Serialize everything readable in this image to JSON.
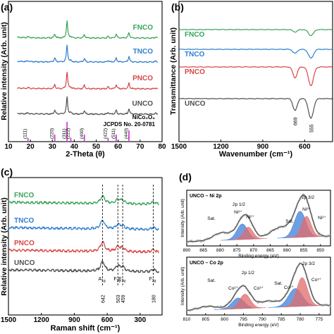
{
  "panel_labels": {
    "a": "(a)",
    "b": "(b)",
    "c": "(c)",
    "d": "(d)"
  },
  "colors": {
    "FNCO": "#3aa35a",
    "TNCO": "#2f7fd0",
    "PNCO": "#d94545",
    "UNCO": "#505050",
    "ref": "#cc44cc",
    "xps_blue": "#3f7fd6",
    "xps_red": "#e06b6b",
    "xps_fit": "#7a7a7a"
  },
  "chart_data": [
    {
      "panel": "a",
      "type": "line",
      "xlabel": "2-Theta (θ)",
      "ylabel": "Relative intensity (Arb. unit)",
      "xlim": [
        10,
        80
      ],
      "xticks": [
        "10",
        "20",
        "30",
        "40",
        "50",
        "60",
        "70",
        "80"
      ],
      "series": [
        {
          "name": "FNCO",
          "offset": 3,
          "peaks": [
            [
              18.9,
              0.05
            ],
            [
              31.1,
              0.18
            ],
            [
              36.7,
              0.75
            ],
            [
              38.4,
              0.06
            ],
            [
              44.6,
              0.16
            ],
            [
              55.4,
              0.08
            ],
            [
              59.1,
              0.18
            ],
            [
              64.9,
              0.25
            ],
            [
              77.1,
              0.04
            ]
          ]
        },
        {
          "name": "TNCO",
          "offset": 2,
          "peaks": [
            [
              18.9,
              0.05
            ],
            [
              31.1,
              0.18
            ],
            [
              36.7,
              0.75
            ],
            [
              38.4,
              0.06
            ],
            [
              44.6,
              0.16
            ],
            [
              55.4,
              0.08
            ],
            [
              59.1,
              0.18
            ],
            [
              64.9,
              0.25
            ],
            [
              77.1,
              0.04
            ]
          ]
        },
        {
          "name": "PNCO",
          "offset": 1,
          "peaks": [
            [
              18.9,
              0.05
            ],
            [
              31.1,
              0.18
            ],
            [
              36.7,
              0.75
            ],
            [
              38.4,
              0.06
            ],
            [
              44.6,
              0.16
            ],
            [
              55.4,
              0.08
            ],
            [
              59.1,
              0.18
            ],
            [
              64.9,
              0.25
            ],
            [
              77.1,
              0.04
            ]
          ]
        },
        {
          "name": "UNCO",
          "offset": 0,
          "peaks": [
            [
              18.9,
              0.05
            ],
            [
              31.1,
              0.18
            ],
            [
              36.7,
              0.75
            ],
            [
              38.4,
              0.06
            ],
            [
              44.6,
              0.16
            ],
            [
              55.4,
              0.08
            ],
            [
              59.1,
              0.18
            ],
            [
              64.9,
              0.25
            ],
            [
              77.1,
              0.04
            ]
          ]
        }
      ],
      "reference": {
        "name": "NiCo₂O₄",
        "card": "JCPDS No. 20-0781",
        "lines": [
          [
            18.9,
            "(111)"
          ],
          [
            31.1,
            "(220)"
          ],
          [
            36.7,
            "(311)"
          ],
          [
            38.4,
            "(222)"
          ],
          [
            44.6,
            "(400)"
          ],
          [
            55.4,
            "(422)"
          ],
          [
            59.1,
            "(511)"
          ],
          [
            64.9,
            "(440)"
          ]
        ]
      }
    },
    {
      "panel": "b",
      "type": "line",
      "xlabel": "Wavenumber (cm⁻¹)",
      "ylabel": "Transmittance (Arb. unit)",
      "xlim": [
        1500,
        400
      ],
      "xticks": [
        "1500",
        "1200",
        "900",
        "600"
      ],
      "series": [
        {
          "name": "FNCO",
          "offset": 3,
          "dips": [
            [
              669,
              0.12
            ],
            [
              555,
              0.3
            ]
          ]
        },
        {
          "name": "TNCO",
          "offset": 2,
          "dips": [
            [
              669,
              0.2
            ],
            [
              555,
              0.45
            ]
          ]
        },
        {
          "name": "PNCO",
          "offset": 1,
          "dips": [
            [
              669,
              0.55
            ],
            [
              555,
              0.95
            ]
          ]
        },
        {
          "name": "UNCO",
          "offset": 0,
          "dips": [
            [
              669,
              0.6
            ],
            [
              555,
              1.0
            ]
          ]
        }
      ],
      "annotations": [
        "669",
        "555"
      ]
    },
    {
      "panel": "c",
      "type": "line",
      "xlabel": "Raman shift (cm⁻¹)",
      "ylabel": "Relative intensity (Arb. unit)",
      "xlim": [
        1500,
        100
      ],
      "xticks": [
        "1500",
        "1200",
        "900",
        "600",
        "300"
      ],
      "series": [
        {
          "name": "FNCO",
          "offset": 3,
          "peaks": [
            [
              642,
              0.35
            ],
            [
              503,
              0.2
            ],
            [
              459,
              0.15
            ],
            [
              180,
              0.1
            ]
          ]
        },
        {
          "name": "TNCO",
          "offset": 2,
          "peaks": [
            [
              642,
              0.4
            ],
            [
              503,
              0.2
            ],
            [
              459,
              0.15
            ],
            [
              180,
              0.1
            ]
          ]
        },
        {
          "name": "PNCO",
          "offset": 1,
          "peaks": [
            [
              642,
              0.45
            ],
            [
              503,
              0.22
            ],
            [
              459,
              0.17
            ],
            [
              180,
              0.12
            ]
          ]
        },
        {
          "name": "UNCO",
          "offset": 0,
          "peaks": [
            [
              642,
              0.45
            ],
            [
              503,
              0.25
            ],
            [
              459,
              0.2
            ],
            [
              180,
              0.12
            ]
          ]
        }
      ],
      "modes": [
        [
          642,
          "642",
          "A1g"
        ],
        [
          503,
          "503",
          "F2g"
        ],
        [
          459,
          "459",
          "E2g"
        ],
        [
          180,
          "180",
          "F2g"
        ]
      ]
    },
    {
      "panel": "d-top",
      "type": "line",
      "title": "UNCO – Ni 2p",
      "xlabel": "Binding energy (eV)",
      "ylabel": "Intensity (Arb. unit)",
      "xlim": [
        890,
        847
      ],
      "xticks": [
        "890",
        "885",
        "880",
        "875",
        "870",
        "865",
        "860",
        "855",
        "850"
      ],
      "labels": {
        "sat1": "Sat.",
        "sat2": "Sat.",
        "p12": "2p 1/2",
        "p32": "2p 3/2",
        "ni3a": "Ni³⁺",
        "ni2a": "Ni²⁺",
        "ni3b": "Ni³⁺",
        "ni2b": "Ni²⁺"
      },
      "components": [
        {
          "name": "Ni³⁺ 2p1/2",
          "center": 873.4,
          "amp": 0.45,
          "width": 1.6
        },
        {
          "name": "Ni²⁺ 2p1/2",
          "center": 871.6,
          "amp": 0.35,
          "width": 1.4
        },
        {
          "name": "Ni³⁺ 2p3/2",
          "center": 856.1,
          "amp": 0.75,
          "width": 1.7
        },
        {
          "name": "Ni²⁺ 2p3/2",
          "center": 854.2,
          "amp": 0.6,
          "width": 1.4
        }
      ]
    },
    {
      "panel": "d-bottom",
      "type": "line",
      "title": "UNCO – Co 2p",
      "xlabel": "Binding energy (eV)",
      "ylabel": "Intensity (Arb. unit)",
      "xlim": [
        810,
        772
      ],
      "xticks": [
        "810",
        "805",
        "800",
        "795",
        "790",
        "785",
        "780",
        "775"
      ],
      "labels": {
        "sat1": "Sat.",
        "sat2": "Sat.",
        "p12": "2p 1/2",
        "p32": "2p 3/2",
        "co2a": "Co²⁺",
        "co3a": "Co³⁺",
        "co2b": "Co²⁺",
        "co3b": "Co³⁺"
      },
      "components": [
        {
          "name": "Co²⁺ 2p1/2",
          "center": 796.4,
          "amp": 0.3,
          "width": 1.6
        },
        {
          "name": "Co³⁺ 2p1/2",
          "center": 794.6,
          "amp": 0.4,
          "width": 1.4
        },
        {
          "name": "Co²⁺ 2p3/2",
          "center": 781.3,
          "amp": 0.5,
          "width": 1.8
        },
        {
          "name": "Co³⁺ 2p3/2",
          "center": 779.5,
          "amp": 0.8,
          "width": 1.4
        }
      ]
    }
  ]
}
